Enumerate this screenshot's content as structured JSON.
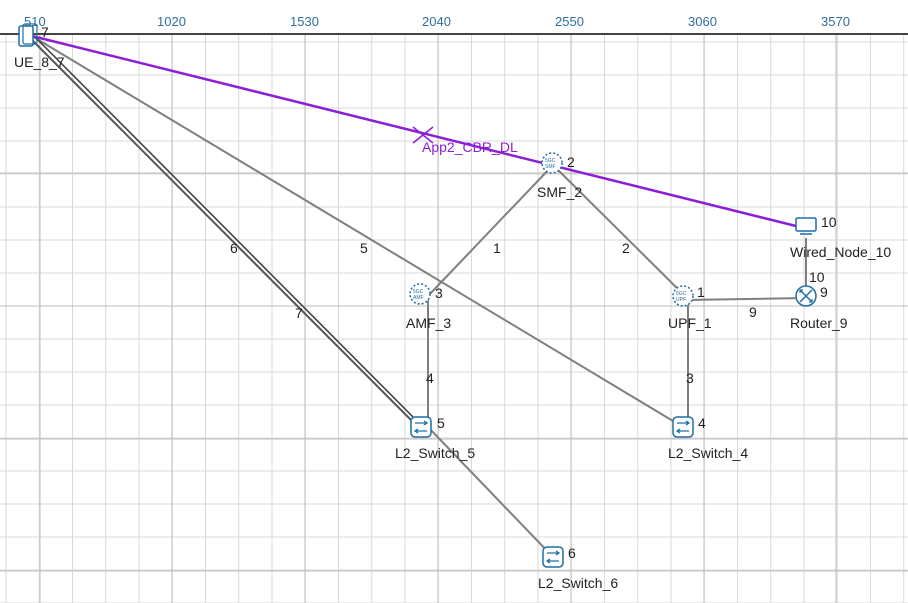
{
  "ruler": {
    "ticks": [
      "510",
      "1020",
      "1530",
      "2040",
      "2550",
      "3060",
      "3570"
    ]
  },
  "colors": {
    "grid": "#d9d9d9",
    "ruler_line": "#444444",
    "link": "#7f7f7f",
    "link_dark": "#3a3a3a",
    "app_flow": "#8b1fd6",
    "node_icon": "#1d6fa5"
  },
  "application": {
    "name": "App2_CBR_DL"
  },
  "nodes": {
    "ue": {
      "id_stack": "7",
      "label": "UE_8_7"
    },
    "smf": {
      "id": "2",
      "label": "SMF_2",
      "icon": "5gc-smf-icon"
    },
    "amf": {
      "id": "3",
      "label": "AMF_3",
      "icon": "5gc-amf-icon"
    },
    "upf": {
      "id": "1",
      "label": "UPF_1",
      "icon": "5gc-upf-icon"
    },
    "router": {
      "id": "9",
      "label": "Router_9",
      "icon": "router-icon"
    },
    "wired": {
      "id": "10",
      "label": "Wired_Node_10",
      "icon": "computer-icon"
    },
    "sw5": {
      "id": "5",
      "label": "L2_Switch_5",
      "icon": "switch-icon"
    },
    "sw4": {
      "id": "4",
      "label": "L2_Switch_4",
      "icon": "switch-icon"
    },
    "sw6": {
      "id": "6",
      "label": "L2_Switch_6",
      "icon": "switch-icon"
    }
  },
  "links": {
    "l1": "1",
    "l2": "2",
    "l3": "3",
    "l4": "4",
    "l5": "5",
    "l6": "6",
    "l7": "7",
    "l9": "9",
    "l10": "10"
  }
}
